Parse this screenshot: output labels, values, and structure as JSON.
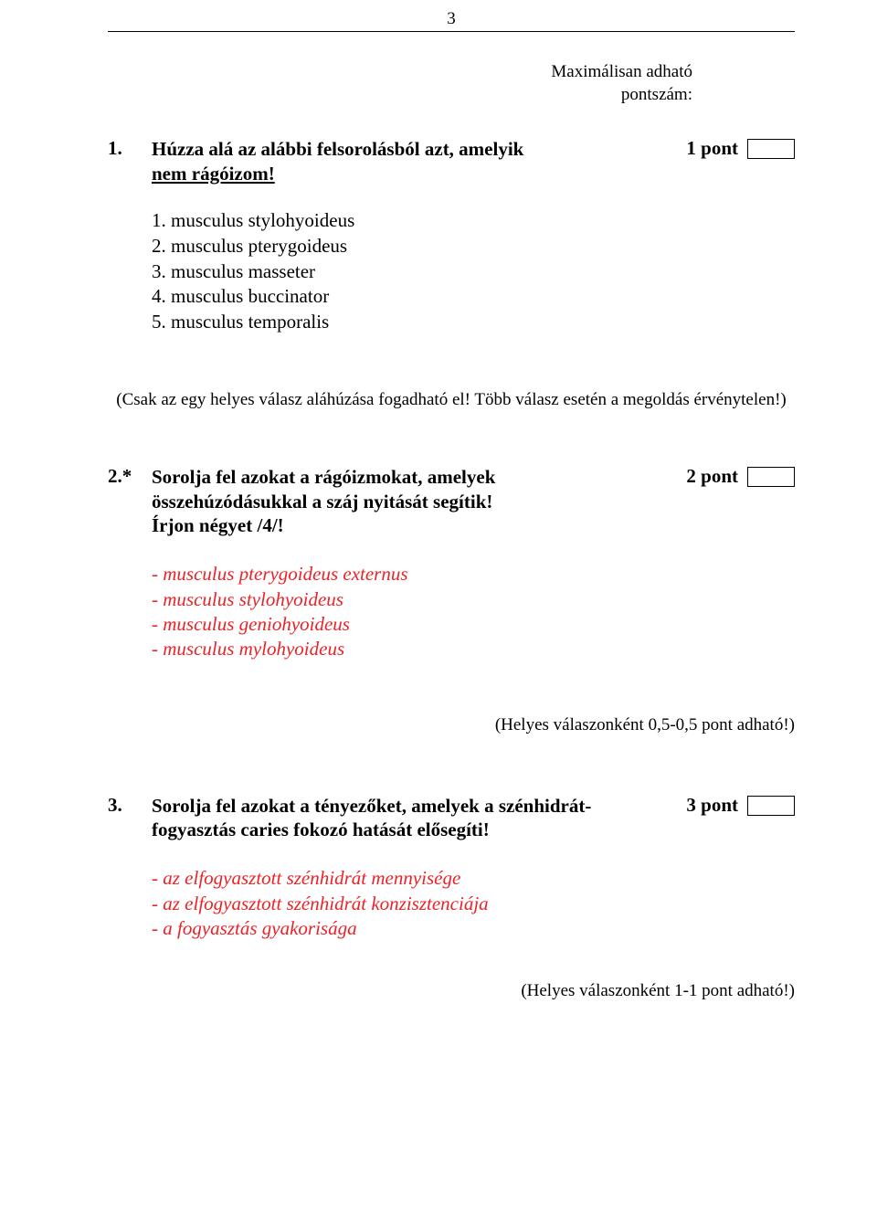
{
  "page_number": "3",
  "header": {
    "line1": "Maximálisan adható",
    "line2": "pontszám:"
  },
  "q1": {
    "num": "1.",
    "text_part1": "Húzza alá az alábbi felsorolásból azt, amelyik ",
    "text_underline": "nem rágóizom!",
    "points": "1 pont",
    "options": {
      "o1": "1. musculus stylohyoideus",
      "o2": "2. musculus pterygoideus",
      "o3": "3. musculus masseter",
      "o4": "4. musculus buccinator",
      "o5": "5. musculus temporalis"
    },
    "note": "(Csak az egy helyes válasz aláhúzása fogadható el! Több válasz esetén a megoldás érvénytelen!)"
  },
  "q2": {
    "num": "2.*",
    "text_line1": "Sorolja fel azokat a rágóizmokat, amelyek",
    "text_line2": "összehúzódásukkal a száj nyitását segítik!",
    "text_line3": "Írjon négyet /4/!",
    "points": "2 pont",
    "answers": {
      "a1": "- musculus pterygoideus externus",
      "a2": "- musculus stylohyoideus",
      "a3": "- musculus geniohyoideus",
      "a4": "- musculus mylohyoideus"
    },
    "note": "(Helyes válaszonként 0,5-0,5 pont adható!)"
  },
  "q3": {
    "num": "3.",
    "text_line1": "Sorolja fel azokat a tényezőket, amelyek a szénhidrát-",
    "text_line2": "fogyasztás caries fokozó hatását elősegíti!",
    "points": "3 pont",
    "answers": {
      "a1": "- az elfogyasztott szénhidrát mennyisége",
      "a2": "- az elfogyasztott szénhidrát konzisztenciája",
      "a3": "- a fogyasztás gyakorisága"
    },
    "note": "(Helyes válaszonként 1-1 pont adható!)"
  }
}
